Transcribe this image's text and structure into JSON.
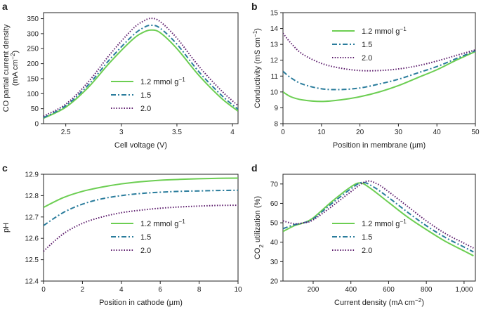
{
  "colors": {
    "green": "#6cce52",
    "blue": "#2a7c9c",
    "purple": "#5b1a6b"
  },
  "chart_data": [
    {
      "panel": "a",
      "type": "line",
      "xlabel": "Cell voltage (V)",
      "ylabel": "CO partial current density (mA cm⁻²)",
      "xlim": [
        2.3,
        4.05
      ],
      "ylim": [
        0,
        370
      ],
      "xticks": [
        2.5,
        3,
        3.5,
        4
      ],
      "xticklabels": [
        "2.5",
        "3",
        "3.5",
        "4"
      ],
      "yticks": [
        0,
        50,
        100,
        150,
        200,
        250,
        300,
        350
      ],
      "legend": "center-left",
      "series": [
        {
          "name": "1.2 mmol g⁻¹",
          "style": "solid",
          "color": "#6cce52",
          "x": [
            2.3,
            2.5,
            2.7,
            2.9,
            3.1,
            3.2,
            3.27,
            3.35,
            3.5,
            3.7,
            3.9,
            4.05
          ],
          "y": [
            18,
            55,
            120,
            205,
            280,
            305,
            312,
            303,
            250,
            160,
            85,
            42
          ]
        },
        {
          "name": "1.5",
          "style": "dashdot",
          "color": "#2a7c9c",
          "x": [
            2.3,
            2.5,
            2.7,
            2.9,
            3.1,
            3.2,
            3.27,
            3.35,
            3.5,
            3.7,
            3.9,
            4.05
          ],
          "y": [
            20,
            60,
            128,
            216,
            293,
            320,
            328,
            318,
            265,
            172,
            95,
            48
          ]
        },
        {
          "name": "2.0",
          "style": "dotted",
          "color": "#5b1a6b",
          "x": [
            2.3,
            2.5,
            2.7,
            2.9,
            3.1,
            3.2,
            3.27,
            3.35,
            3.5,
            3.7,
            3.9,
            4.05
          ],
          "y": [
            25,
            65,
            138,
            232,
            315,
            342,
            351,
            340,
            285,
            190,
            110,
            60
          ]
        }
      ]
    },
    {
      "panel": "b",
      "type": "line",
      "xlabel": "Position in membrane (µm)",
      "ylabel": "Conductivity (mS cm⁻¹)",
      "xlim": [
        0,
        50
      ],
      "ylim": [
        8,
        15
      ],
      "xticks": [
        0,
        10,
        20,
        30,
        40,
        50
      ],
      "yticks": [
        8,
        9,
        10,
        11,
        12,
        13,
        14,
        15
      ],
      "legend": "top-right",
      "series": [
        {
          "name": "1.2 mmol g⁻¹",
          "style": "solid",
          "color": "#6cce52",
          "x": [
            0,
            2,
            5,
            10,
            15,
            20,
            25,
            30,
            35,
            40,
            45,
            50
          ],
          "y": [
            10.0,
            9.7,
            9.5,
            9.4,
            9.5,
            9.7,
            10.0,
            10.4,
            10.9,
            11.4,
            12.0,
            12.55
          ]
        },
        {
          "name": "1.5",
          "style": "dashdot",
          "color": "#2a7c9c",
          "x": [
            0,
            2,
            5,
            10,
            15,
            20,
            25,
            30,
            35,
            40,
            45,
            50
          ],
          "y": [
            11.3,
            10.9,
            10.5,
            10.2,
            10.15,
            10.25,
            10.5,
            10.8,
            11.2,
            11.6,
            12.1,
            12.6
          ]
        },
        {
          "name": "2.0",
          "style": "dotted",
          "color": "#5b1a6b",
          "x": [
            0,
            2,
            5,
            10,
            15,
            20,
            25,
            30,
            35,
            40,
            45,
            50
          ],
          "y": [
            13.7,
            13.1,
            12.4,
            11.8,
            11.5,
            11.35,
            11.35,
            11.45,
            11.65,
            11.95,
            12.3,
            12.65
          ]
        }
      ]
    },
    {
      "panel": "c",
      "type": "line",
      "xlabel": "Position in cathode (µm)",
      "ylabel": "pH",
      "xlim": [
        0,
        10
      ],
      "ylim": [
        12.4,
        12.9
      ],
      "xticks": [
        0,
        2,
        4,
        6,
        8,
        10
      ],
      "yticks": [
        12.4,
        12.5,
        12.6,
        12.7,
        12.8,
        12.9
      ],
      "yticklabels": [
        "12.4",
        "12.5",
        "12.6",
        "12.7",
        "12.8",
        "12.9"
      ],
      "legend": "bottom-right",
      "series": [
        {
          "name": "1.2 mmol g⁻¹",
          "style": "solid",
          "color": "#6cce52",
          "x": [
            0,
            1,
            2,
            3,
            4,
            5,
            6,
            7,
            8,
            9,
            10
          ],
          "y": [
            12.745,
            12.79,
            12.82,
            12.84,
            12.855,
            12.865,
            12.872,
            12.876,
            12.879,
            12.881,
            12.882
          ]
        },
        {
          "name": "1.5",
          "style": "dashdot",
          "color": "#2a7c9c",
          "x": [
            0,
            1,
            2,
            3,
            4,
            5,
            6,
            7,
            8,
            9,
            10
          ],
          "y": [
            12.66,
            12.72,
            12.76,
            12.785,
            12.8,
            12.81,
            12.816,
            12.82,
            12.822,
            12.824,
            12.825
          ]
        },
        {
          "name": "2.0",
          "style": "dotted",
          "color": "#5b1a6b",
          "x": [
            0,
            1,
            2,
            3,
            4,
            5,
            6,
            7,
            8,
            9,
            10
          ],
          "y": [
            12.54,
            12.62,
            12.67,
            12.7,
            12.72,
            12.732,
            12.741,
            12.747,
            12.751,
            12.754,
            12.755
          ]
        }
      ]
    },
    {
      "panel": "d",
      "type": "line",
      "xlabel": "Current density (mA cm⁻²)",
      "ylabel": "CO₂ utilization (%)",
      "xlim": [
        40,
        1060
      ],
      "ylim": [
        20,
        75
      ],
      "xticks": [
        200,
        400,
        600,
        800,
        1000
      ],
      "xticklabels": [
        "200",
        "400",
        "600",
        "800",
        "1,000"
      ],
      "yticks": [
        20,
        30,
        40,
        50,
        60,
        70
      ],
      "legend": "bottom-right",
      "series": [
        {
          "name": "1.2 mmol g⁻¹",
          "style": "solid",
          "color": "#6cce52",
          "x": [
            40,
            100,
            150,
            200,
            300,
            400,
            450,
            500,
            600,
            700,
            800,
            900,
            1000,
            1050
          ],
          "y": [
            45.5,
            48.5,
            50.0,
            52.5,
            61.0,
            68.5,
            70.5,
            68.0,
            60.5,
            53.0,
            46.5,
            40.5,
            35.5,
            33.0
          ]
        },
        {
          "name": "1.5",
          "style": "dashdot",
          "color": "#2a7c9c",
          "x": [
            40,
            100,
            150,
            200,
            300,
            400,
            460,
            520,
            600,
            700,
            800,
            900,
            1000,
            1050
          ],
          "y": [
            47.0,
            49.0,
            50.0,
            52.0,
            60.0,
            67.5,
            70.8,
            68.5,
            63.0,
            55.5,
            48.5,
            42.5,
            37.5,
            35.0
          ]
        },
        {
          "name": "2.0",
          "style": "dotted",
          "color": "#5b1a6b",
          "x": [
            40,
            100,
            150,
            200,
            300,
            400,
            480,
            540,
            600,
            700,
            800,
            900,
            1000,
            1050
          ],
          "y": [
            51.0,
            49.5,
            50.0,
            51.5,
            58.5,
            66.0,
            71.3,
            70.0,
            66.0,
            58.5,
            51.0,
            44.5,
            39.5,
            37.0
          ]
        }
      ]
    }
  ]
}
